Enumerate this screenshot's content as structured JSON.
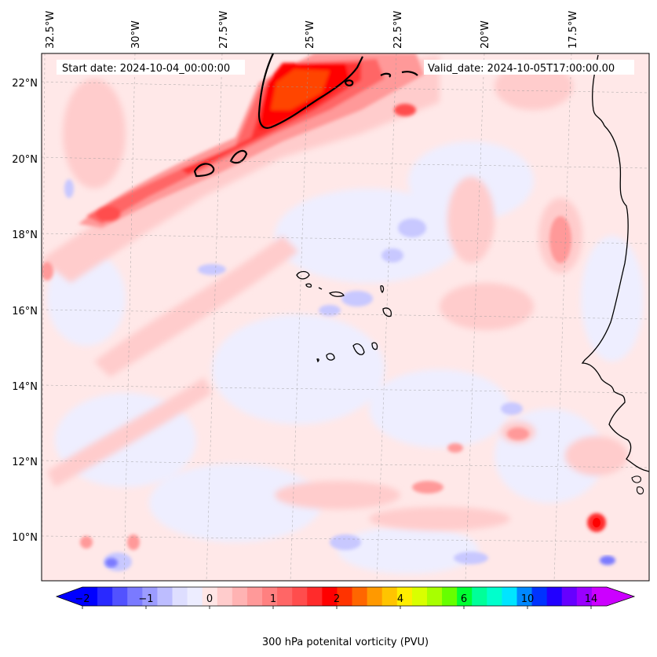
{
  "map": {
    "start_date": "Start date: 2024-10-04_00:00:00",
    "valid_date": "Valid_date: 2024-10-05T17:00:00.00",
    "lon_labels": [
      "32.5°W",
      "30°W",
      "27.5°W",
      "25°W",
      "22.5°W",
      "20°W",
      "17.5°W"
    ],
    "lat_labels": [
      "22°N",
      "20°N",
      "18°N",
      "16°N",
      "14°N",
      "12°N",
      "10°N"
    ],
    "extent": {
      "lon_min": -32.5,
      "lon_max": -15.1,
      "lat_min": 8.9,
      "lat_max": 22.8
    }
  },
  "colorbar": {
    "label": "300 hPa potenital vorticity (PVU)",
    "tick_labels": [
      "−2",
      "−1",
      "0",
      "1",
      "2",
      "4",
      "6",
      "10",
      "14"
    ],
    "colors": [
      "#0000ff",
      "#2929ff",
      "#5252ff",
      "#7a7aff",
      "#9c9cff",
      "#bdbdff",
      "#dedeff",
      "#ededff",
      "#ffe6e6",
      "#ffcccc",
      "#ffb3b3",
      "#ff9999",
      "#ff8080",
      "#ff6666",
      "#ff4d4d",
      "#ff2b2b",
      "#ff0000",
      "#ff3300",
      "#ff6600",
      "#ff9900",
      "#ffc400",
      "#ffee00",
      "#d9ff00",
      "#a8ff00",
      "#66ff00",
      "#00ff33",
      "#00ff99",
      "#00ffcc",
      "#00e5ff",
      "#0088ff",
      "#0033ff",
      "#2200ff",
      "#6600ff",
      "#9900ff",
      "#cc00ff"
    ],
    "extend_min_color": "#0000ff",
    "extend_max_color": "#cc00ff"
  }
}
